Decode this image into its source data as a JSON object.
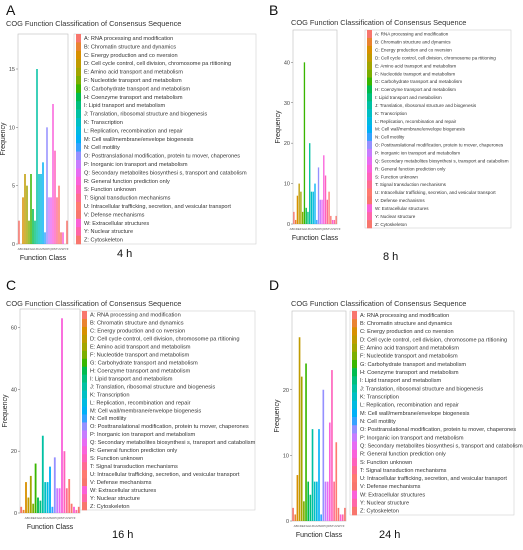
{
  "cog_labels": [
    "A: RNA processing and modification",
    "B: Chromatin structure and dynamics",
    "C: Energy production and co nversion",
    "D: Cell cycle control, cell division, chromosome pa rtitioning",
    "E: Amino acid transport and metabolism",
    "F: Nucleotide transport and metabolism",
    "G: Carbohydrate transport and metabolism",
    "H: Coenzyme transport and metabolism",
    "I: Lipid transport and metabolism",
    "J: Translation, ribosomal structure and biogenesis",
    "K: Transcription",
    "L: Replication, recombination and repair",
    "M: Cell wall/membrane/envelope biogenesis",
    "N: Cell motility",
    "O: Posttranslational modification, protein tu rnover, chaperones",
    "P: Inorganic ion transport and metabolism",
    "Q: Secondary metabolites biosynthesi s, transport and catabolism",
    "R: General function prediction only",
    "S: Function unknown",
    "T: Signal transduction mechanisms",
    "U: Intracellular trafficking, secretion, and vesicular transport",
    "V: Defense mechanisms",
    "W: Extracellular structures",
    "Y: Nuclear structure",
    "Z: Cytoskeleton"
  ],
  "chart_data": [
    {
      "panel": "A",
      "type": "bar",
      "caption": "4 h",
      "title": "COG Function Classification of Consensus Sequence",
      "xlabel": "Function Class",
      "ylabel": "Frequency",
      "ylim": [
        0,
        18
      ],
      "yticks": [
        0,
        5,
        10,
        15
      ],
      "tick_text": "ABCDEFGHIJKLMNOPQRSTUVWYZ",
      "categories": [
        "A",
        "B",
        "C",
        "D",
        "E",
        "F",
        "G",
        "H",
        "I",
        "J",
        "K",
        "L",
        "M",
        "N",
        "O",
        "P",
        "Q",
        "R",
        "S",
        "T",
        "U",
        "V",
        "W",
        "Y",
        "Z"
      ],
      "values": [
        2,
        0,
        4,
        6,
        5,
        2,
        6,
        3,
        2,
        15,
        6,
        6,
        7,
        1,
        10,
        4,
        4,
        12,
        8,
        4,
        5,
        1,
        1,
        0,
        2
      ]
    },
    {
      "panel": "B",
      "type": "bar",
      "caption": "8 h",
      "title": "COG Function Classification of Consensus Sequence",
      "xlabel": "Function Class",
      "ylabel": "Frequency",
      "ylim": [
        0,
        48
      ],
      "yticks": [
        0,
        10,
        20,
        30,
        40
      ],
      "tick_text": "ABCDEFGHIJKLMNOPQRSTUVWYZ",
      "categories": [
        "A",
        "B",
        "C",
        "D",
        "E",
        "F",
        "G",
        "H",
        "I",
        "J",
        "K",
        "L",
        "M",
        "N",
        "O",
        "P",
        "Q",
        "R",
        "S",
        "T",
        "U",
        "V",
        "W",
        "Y",
        "Z"
      ],
      "values": [
        3,
        1,
        7,
        10,
        8,
        3,
        40,
        4,
        3,
        20,
        8,
        8,
        10,
        1,
        14,
        6,
        6,
        17,
        12,
        6,
        8,
        2,
        1,
        1,
        2
      ]
    },
    {
      "panel": "C",
      "type": "bar",
      "caption": "16 h",
      "title": "COG Function Classification of Consensus Sequence",
      "xlabel": "Function Class",
      "ylabel": "Frequency",
      "ylim": [
        0,
        66
      ],
      "yticks": [
        0,
        20,
        40,
        60
      ],
      "tick_text": "ABCDEFGHIJKLMNOPQRSTUVWYZ",
      "categories": [
        "A",
        "B",
        "C",
        "D",
        "E",
        "F",
        "G",
        "H",
        "I",
        "J",
        "K",
        "L",
        "M",
        "N",
        "O",
        "P",
        "Q",
        "R",
        "S",
        "T",
        "U",
        "V",
        "W",
        "Y",
        "Z"
      ],
      "values": [
        2,
        1,
        10,
        5,
        12,
        3,
        16,
        5,
        4,
        25,
        10,
        10,
        15,
        2,
        18,
        8,
        8,
        63,
        20,
        8,
        11,
        3,
        2,
        1,
        2
      ]
    },
    {
      "panel": "D",
      "type": "bar",
      "caption": "24 h",
      "title": "COG Function Classification of Consensus Sequence",
      "xlabel": "Function Class",
      "ylabel": "Frequency",
      "ylim": [
        0,
        32
      ],
      "yticks": [
        0,
        10,
        20
      ],
      "tick_text": "ABCDEFGHIJKLMNOPQRSTUVWYZ",
      "categories": [
        "A",
        "B",
        "C",
        "D",
        "E",
        "F",
        "G",
        "H",
        "I",
        "J",
        "K",
        "L",
        "M",
        "N",
        "O",
        "P",
        "Q",
        "R",
        "S",
        "T",
        "U",
        "V",
        "W",
        "Y",
        "Z"
      ],
      "values": [
        2,
        1,
        7,
        28,
        22,
        3,
        24,
        6,
        4,
        14,
        6,
        6,
        14,
        1,
        20,
        6,
        6,
        15,
        23,
        6,
        12,
        2,
        1,
        1,
        2
      ]
    }
  ],
  "bar_colors": [
    "#f8766d",
    "#ea8331",
    "#d89000",
    "#c09b00",
    "#a3a500",
    "#7cae00",
    "#39b600",
    "#00bb4e",
    "#00bf7d",
    "#00c1a3",
    "#00bfc4",
    "#00bae0",
    "#00b0f6",
    "#35a2ff",
    "#9590ff",
    "#c77cff",
    "#e76bf3",
    "#fa62db",
    "#ff62bc",
    "#ff6c91",
    "#ff7a70",
    "#f8766d",
    "#fb61d7",
    "#ff66a8",
    "#f8766d"
  ]
}
